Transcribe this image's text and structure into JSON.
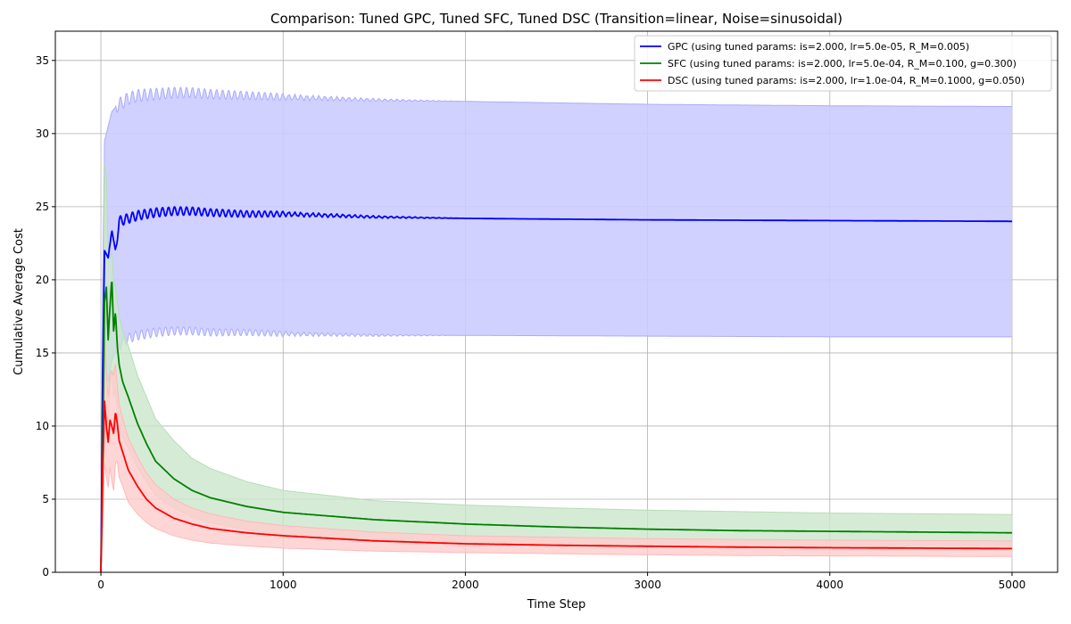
{
  "chart_data": {
    "type": "line",
    "title": "Comparison: Tuned GPC, Tuned SFC, Tuned DSC (Transition=linear, Noise=sinusoidal)",
    "xlabel": "Time Step",
    "ylabel": "Cumulative Average Cost",
    "xlim": [
      -250,
      5250
    ],
    "ylim": [
      0,
      37
    ],
    "xticks": [
      0,
      1000,
      2000,
      3000,
      4000,
      5000
    ],
    "yticks": [
      0,
      5,
      10,
      15,
      20,
      25,
      30,
      35
    ],
    "grid": true,
    "legend_position": "top-right",
    "series": [
      {
        "name": "GPC  (using tuned params: is=2.000, lr=5.0e-05, R_M=0.005)",
        "color": "#0000ff",
        "band_color": "#ccccff",
        "band_edge_color": "#aaaaff",
        "x": [
          0,
          10,
          20,
          40,
          60,
          80,
          100,
          150,
          200,
          300,
          400,
          500,
          600,
          800,
          1000,
          1500,
          2000,
          3000,
          4000,
          5000
        ],
        "mean": [
          0,
          14,
          22.0,
          21.5,
          23.4,
          22.0,
          24.0,
          24.2,
          24.4,
          24.6,
          24.7,
          24.7,
          24.6,
          24.5,
          24.5,
          24.3,
          24.2,
          24.1,
          24.05,
          24.0
        ],
        "upper": [
          0,
          20,
          29.5,
          30.5,
          31.5,
          31.8,
          32.0,
          32.4,
          32.6,
          32.7,
          32.8,
          32.8,
          32.7,
          32.6,
          32.5,
          32.3,
          32.2,
          32.0,
          31.9,
          31.85
        ],
        "lower": [
          0,
          8,
          14.5,
          13.0,
          14.5,
          15.0,
          15.5,
          16.0,
          16.2,
          16.4,
          16.5,
          16.5,
          16.4,
          16.4,
          16.3,
          16.2,
          16.2,
          16.15,
          16.1,
          16.1
        ]
      },
      {
        "name": "SFC  (using tuned params: is=2.000, lr=5.0e-04, R_M=0.100, g=0.300)",
        "color": "#008000",
        "band_color": "#cce6cc",
        "band_edge_color": "#b8dcb8",
        "x": [
          0,
          10,
          20,
          30,
          40,
          50,
          60,
          70,
          80,
          90,
          100,
          120,
          150,
          200,
          250,
          300,
          400,
          500,
          600,
          800,
          1000,
          1500,
          2000,
          2500,
          3000,
          3500,
          4000,
          4500,
          5000
        ],
        "mean": [
          0,
          8,
          18.5,
          19.5,
          15.9,
          18.2,
          20.2,
          16.5,
          17.8,
          15.5,
          14.2,
          13.0,
          12.0,
          10.2,
          8.8,
          7.6,
          6.4,
          5.6,
          5.1,
          4.5,
          4.1,
          3.6,
          3.3,
          3.1,
          2.95,
          2.85,
          2.8,
          2.75,
          2.7
        ],
        "upper": [
          0,
          14,
          28.0,
          27.0,
          22.0,
          21.5,
          22.0,
          20.0,
          19.5,
          18.5,
          17.5,
          16.5,
          15.5,
          13.5,
          12.0,
          10.5,
          9.0,
          7.8,
          7.1,
          6.2,
          5.6,
          4.9,
          4.6,
          4.4,
          4.25,
          4.15,
          4.05,
          4.0,
          3.95
        ],
        "lower": [
          0,
          3,
          9.0,
          11.0,
          10.0,
          12.5,
          14.0,
          12.0,
          12.5,
          11.0,
          10.0,
          9.2,
          8.5,
          7.2,
          6.2,
          5.3,
          4.4,
          3.8,
          3.4,
          2.9,
          2.6,
          2.2,
          2.05,
          1.95,
          1.85,
          1.8,
          1.75,
          1.7,
          1.65
        ]
      },
      {
        "name": "DSC  (using tuned params: is=2.000, lr=1.0e-04, R_M=0.1000, g=0.050)",
        "color": "#ff0000",
        "band_color": "#ffcccc",
        "band_edge_color": "#ffb8b8",
        "x": [
          0,
          10,
          20,
          30,
          40,
          50,
          60,
          70,
          80,
          90,
          100,
          120,
          150,
          200,
          250,
          300,
          400,
          500,
          600,
          800,
          1000,
          1500,
          2000,
          2500,
          3000,
          3500,
          4000,
          4500,
          5000
        ],
        "mean": [
          0,
          7,
          11.7,
          10.0,
          8.9,
          10.4,
          10.0,
          9.5,
          11.0,
          10.2,
          9.0,
          8.2,
          7.0,
          5.9,
          5.0,
          4.4,
          3.7,
          3.3,
          3.0,
          2.7,
          2.5,
          2.15,
          1.95,
          1.85,
          1.78,
          1.72,
          1.68,
          1.65,
          1.62
        ],
        "upper": [
          0,
          11,
          15.8,
          13.5,
          12.0,
          13.5,
          13.8,
          13.5,
          14.3,
          12.8,
          11.5,
          10.5,
          9.2,
          7.9,
          6.8,
          6.0,
          5.0,
          4.4,
          4.0,
          3.5,
          3.2,
          2.75,
          2.5,
          2.4,
          2.3,
          2.25,
          2.2,
          2.17,
          2.15
        ],
        "lower": [
          0,
          3,
          7.5,
          6.5,
          5.8,
          7.2,
          6.2,
          5.6,
          7.5,
          7.6,
          6.5,
          5.9,
          4.8,
          4.0,
          3.4,
          3.0,
          2.5,
          2.2,
          2.0,
          1.8,
          1.65,
          1.45,
          1.35,
          1.27,
          1.2,
          1.15,
          1.12,
          1.1,
          1.08
        ]
      }
    ]
  }
}
